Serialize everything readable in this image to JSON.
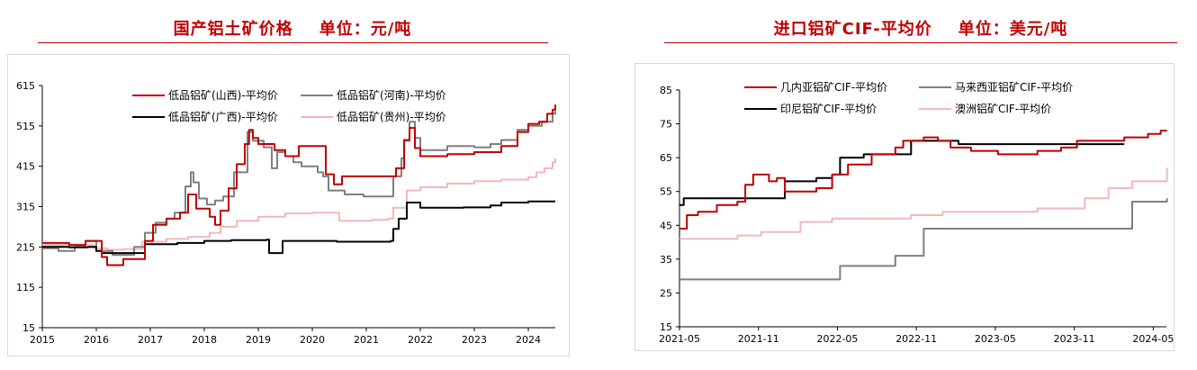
{
  "left": {
    "title": "国产铝土矿价格    单位：元/吨",
    "chart_data": {
      "type": "line",
      "title": "国产铝土矿价格    单位：元/吨",
      "ylim": [
        15,
        615
      ],
      "yticks": [
        15,
        115,
        215,
        315,
        415,
        515,
        615
      ],
      "xlim": [
        2015,
        2024.5
      ],
      "xticks": [
        "2015",
        "2016",
        "2017",
        "2018",
        "2019",
        "2020",
        "2021",
        "2022",
        "2023",
        "2024"
      ],
      "grid": false,
      "legend": "top",
      "series": [
        {
          "name": "低品铝矿(山西)-平均价",
          "color": "#c00000",
          "width": 2,
          "points": [
            [
              2015,
              225
            ],
            [
              2015.5,
              220
            ],
            [
              2015.8,
              230
            ],
            [
              2016.1,
              190
            ],
            [
              2016.2,
              170
            ],
            [
              2016.5,
              185
            ],
            [
              2016.9,
              230
            ],
            [
              2017.05,
              270
            ],
            [
              2017.3,
              285
            ],
            [
              2017.55,
              300
            ],
            [
              2017.7,
              345
            ],
            [
              2017.85,
              310
            ],
            [
              2018.1,
              290
            ],
            [
              2018.2,
              270
            ],
            [
              2018.3,
              305
            ],
            [
              2018.45,
              360
            ],
            [
              2018.6,
              420
            ],
            [
              2018.75,
              470
            ],
            [
              2018.83,
              505
            ],
            [
              2018.9,
              485
            ],
            [
              2019.0,
              470
            ],
            [
              2019.3,
              455
            ],
            [
              2019.5,
              440
            ],
            [
              2019.75,
              465
            ],
            [
              2020.2,
              465
            ],
            [
              2020.25,
              395
            ],
            [
              2020.4,
              370
            ],
            [
              2020.55,
              390
            ],
            [
              2020.9,
              390
            ],
            [
              2021.3,
              390
            ],
            [
              2021.55,
              410
            ],
            [
              2021.7,
              480
            ],
            [
              2021.8,
              510
            ],
            [
              2021.9,
              460
            ],
            [
              2022.0,
              440
            ],
            [
              2022.5,
              445
            ],
            [
              2023.0,
              450
            ],
            [
              2023.5,
              465
            ],
            [
              2023.8,
              500
            ],
            [
              2024.0,
              520
            ],
            [
              2024.2,
              525
            ],
            [
              2024.35,
              545
            ],
            [
              2024.45,
              555
            ],
            [
              2024.5,
              568
            ]
          ]
        },
        {
          "name": "低品铝矿(河南)-平均价",
          "color": "#7f7f7f",
          "width": 2,
          "points": [
            [
              2015,
              212
            ],
            [
              2015.3,
              205
            ],
            [
              2015.6,
              215
            ],
            [
              2015.8,
              230
            ],
            [
              2016.0,
              205
            ],
            [
              2016.3,
              195
            ],
            [
              2016.5,
              195
            ],
            [
              2016.7,
              215
            ],
            [
              2016.9,
              250
            ],
            [
              2017.1,
              275
            ],
            [
              2017.3,
              285
            ],
            [
              2017.45,
              300
            ],
            [
              2017.65,
              365
            ],
            [
              2017.75,
              400
            ],
            [
              2017.8,
              375
            ],
            [
              2017.9,
              335
            ],
            [
              2018.05,
              320
            ],
            [
              2018.2,
              330
            ],
            [
              2018.35,
              340
            ],
            [
              2018.55,
              400
            ],
            [
              2018.8,
              500
            ],
            [
              2018.9,
              478
            ],
            [
              2019.1,
              462
            ],
            [
              2019.25,
              410
            ],
            [
              2019.35,
              450
            ],
            [
              2019.5,
              440
            ],
            [
              2019.65,
              425
            ],
            [
              2019.8,
              415
            ],
            [
              2020.1,
              400
            ],
            [
              2020.2,
              390
            ],
            [
              2020.3,
              355
            ],
            [
              2020.6,
              345
            ],
            [
              2020.95,
              340
            ],
            [
              2021.3,
              340
            ],
            [
              2021.5,
              390
            ],
            [
              2021.65,
              435
            ],
            [
              2021.7,
              478
            ],
            [
              2021.8,
              525
            ],
            [
              2021.9,
              485
            ],
            [
              2022.0,
              455
            ],
            [
              2022.5,
              465
            ],
            [
              2023.0,
              462
            ],
            [
              2023.3,
              470
            ],
            [
              2023.5,
              480
            ],
            [
              2023.8,
              505
            ],
            [
              2024.0,
              515
            ],
            [
              2024.25,
              525
            ],
            [
              2024.45,
              545
            ],
            [
              2024.5,
              552
            ]
          ]
        },
        {
          "name": "低品铝矿(广西)-平均价",
          "color": "#000000",
          "width": 2,
          "points": [
            [
              2015,
              215
            ],
            [
              2015.5,
              214
            ],
            [
              2015.85,
              215
            ],
            [
              2016.0,
              205
            ],
            [
              2016.1,
              200
            ],
            [
              2016.5,
              200
            ],
            [
              2016.9,
              222
            ],
            [
              2017.5,
              225
            ],
            [
              2018.0,
              230
            ],
            [
              2018.5,
              232
            ],
            [
              2019.15,
              233
            ],
            [
              2019.2,
              200
            ],
            [
              2019.4,
              200
            ],
            [
              2019.45,
              230
            ],
            [
              2020.2,
              230
            ],
            [
              2020.45,
              228
            ],
            [
              2020.9,
              228
            ],
            [
              2021.45,
              230
            ],
            [
              2021.5,
              260
            ],
            [
              2021.6,
              285
            ],
            [
              2021.75,
              325
            ],
            [
              2021.9,
              325
            ],
            [
              2022.0,
              312
            ],
            [
              2022.4,
              312
            ],
            [
              2022.8,
              313
            ],
            [
              2023.3,
              318
            ],
            [
              2023.5,
              325
            ],
            [
              2024.0,
              328
            ],
            [
              2024.5,
              328
            ]
          ]
        },
        {
          "name": "低品铝矿(贵州)-平均价",
          "color": "#f4b8b8",
          "width": 2,
          "points": [
            [
              2015,
              220
            ],
            [
              2015.4,
              220
            ],
            [
              2015.75,
              220
            ],
            [
              2015.95,
              212
            ],
            [
              2016.2,
              208
            ],
            [
              2016.5,
              210
            ],
            [
              2016.85,
              228
            ],
            [
              2017.3,
              235
            ],
            [
              2017.7,
              240
            ],
            [
              2018.1,
              250
            ],
            [
              2018.3,
              265
            ],
            [
              2018.6,
              280
            ],
            [
              2019.0,
              290
            ],
            [
              2019.5,
              298
            ],
            [
              2020.0,
              300
            ],
            [
              2020.4,
              300
            ],
            [
              2020.5,
              280
            ],
            [
              2021.1,
              282
            ],
            [
              2021.4,
              285
            ],
            [
              2021.5,
              312
            ],
            [
              2021.75,
              355
            ],
            [
              2022.0,
              363
            ],
            [
              2022.5,
              372
            ],
            [
              2023.0,
              378
            ],
            [
              2023.5,
              382
            ],
            [
              2024.0,
              388
            ],
            [
              2024.15,
              400
            ],
            [
              2024.3,
              410
            ],
            [
              2024.45,
              425
            ],
            [
              2024.5,
              435
            ]
          ]
        }
      ]
    }
  },
  "right": {
    "title": "进口铝矿CIF-平均价    单位：美元/吨",
    "chart_data": {
      "type": "line",
      "title": "进口铝矿CIF-平均价    单位：美元/吨",
      "ylim": [
        15,
        85
      ],
      "yticks": [
        15,
        25,
        35,
        45,
        55,
        65,
        75,
        85
      ],
      "xlim": [
        2021.3333,
        2024.4167
      ],
      "xticks": [
        "2021-05",
        "2021-11",
        "2022-05",
        "2022-11",
        "2023-05",
        "2023-11",
        "2024-05"
      ],
      "xtick_pos": [
        2021.3333,
        2021.8333,
        2022.3333,
        2022.8333,
        2023.3333,
        2023.8333,
        2024.3333
      ],
      "grid": false,
      "legend": "top",
      "series": [
        {
          "name": "几内亚铝矿CIF-平均价",
          "color": "#c00000",
          "width": 2,
          "points": [
            [
              2021.3333,
              44
            ],
            [
              2021.38,
              48
            ],
            [
              2021.45,
              49
            ],
            [
              2021.5,
              49
            ],
            [
              2021.57,
              51
            ],
            [
              2021.7,
              52
            ],
            [
              2021.75,
              57
            ],
            [
              2021.8,
              60
            ],
            [
              2021.9,
              58
            ],
            [
              2021.95,
              59
            ],
            [
              2022.0,
              55
            ],
            [
              2022.2,
              56
            ],
            [
              2022.3,
              60
            ],
            [
              2022.4,
              63
            ],
            [
              2022.55,
              66
            ],
            [
              2022.7,
              68
            ],
            [
              2022.75,
              70
            ],
            [
              2022.88,
              71
            ],
            [
              2022.97,
              70
            ],
            [
              2023.05,
              68
            ],
            [
              2023.18,
              67
            ],
            [
              2023.35,
              66
            ],
            [
              2023.6,
              67
            ],
            [
              2023.75,
              68
            ],
            [
              2023.85,
              70
            ],
            [
              2024.0,
              70
            ],
            [
              2024.15,
              71
            ],
            [
              2024.3,
              72
            ],
            [
              2024.38,
              73
            ],
            [
              2024.42,
              73
            ]
          ]
        },
        {
          "name": "马来西亚铝矿CIF-平均价",
          "color": "#7f7f7f",
          "width": 2,
          "points": [
            [
              2021.3333,
              29
            ],
            [
              2021.8,
              29
            ],
            [
              2022.1,
              29
            ],
            [
              2022.3,
              29
            ],
            [
              2022.35,
              33
            ],
            [
              2022.5,
              33
            ],
            [
              2022.7,
              36
            ],
            [
              2022.82,
              36
            ],
            [
              2022.88,
              44
            ],
            [
              2023.2,
              44
            ],
            [
              2023.5,
              44
            ],
            [
              2024.0,
              44
            ],
            [
              2024.15,
              44
            ],
            [
              2024.2,
              52
            ],
            [
              2024.4,
              52
            ],
            [
              2024.42,
              53
            ]
          ]
        },
        {
          "name": "印尼铝矿CIF-平均价",
          "color": "#000000",
          "width": 2,
          "points": [
            [
              2021.3333,
              51
            ],
            [
              2021.36,
              53
            ],
            [
              2021.8,
              53
            ],
            [
              2021.95,
              53
            ],
            [
              2022.0,
              58
            ],
            [
              2022.2,
              59
            ],
            [
              2022.3,
              60
            ],
            [
              2022.35,
              65
            ],
            [
              2022.5,
              66
            ],
            [
              2022.75,
              66
            ],
            [
              2022.8,
              70
            ],
            [
              2023.05,
              70
            ],
            [
              2023.1,
              69
            ],
            [
              2023.5,
              69
            ],
            [
              2024.0,
              69
            ],
            [
              2024.15,
              69
            ]
          ]
        },
        {
          "name": "澳洲铝矿CIF-平均价",
          "color": "#f4b8b8",
          "width": 2,
          "points": [
            [
              2021.3333,
              41
            ],
            [
              2021.6,
              41
            ],
            [
              2021.7,
              42
            ],
            [
              2021.85,
              43
            ],
            [
              2022.1,
              46
            ],
            [
              2022.3,
              47
            ],
            [
              2022.55,
              47
            ],
            [
              2022.8,
              48
            ],
            [
              2023.0,
              49
            ],
            [
              2023.3,
              49
            ],
            [
              2023.6,
              50
            ],
            [
              2023.9,
              53
            ],
            [
              2024.05,
              56
            ],
            [
              2024.2,
              58
            ],
            [
              2024.38,
              58
            ],
            [
              2024.42,
              62
            ]
          ]
        }
      ]
    }
  }
}
